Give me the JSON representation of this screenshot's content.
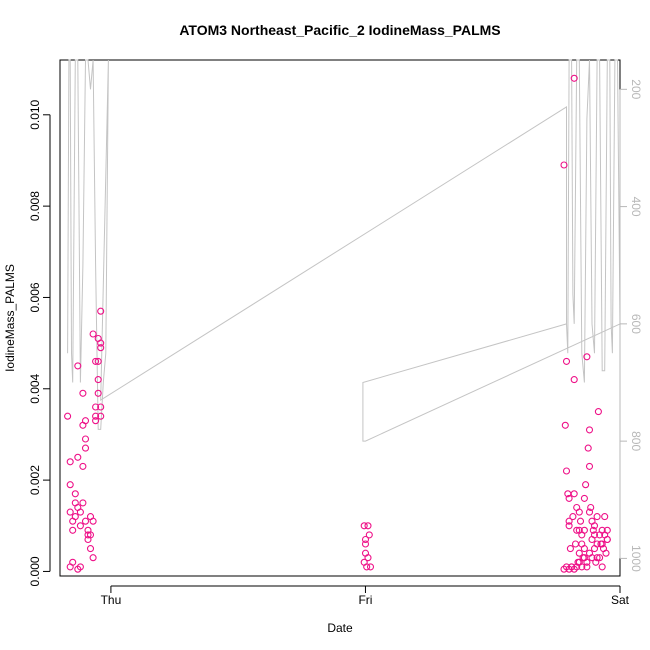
{
  "chart_data": {
    "type": "scatter",
    "title": "ATOM3 Northeast_Pacific_2 IodineMass_PALMS",
    "xlabel": "Date",
    "ylabel": "IodineMass_PALMS",
    "x_ticks": [
      "Thu",
      "Fri",
      "Sat"
    ],
    "y_ticks": [
      "0.000",
      "0.002",
      "0.004",
      "0.006",
      "0.008",
      "0.010"
    ],
    "y_tick_values": [
      0,
      0.002,
      0.004,
      0.006,
      0.008,
      0.01
    ],
    "ylim": [
      -0.0001,
      0.0112
    ],
    "xlim": [
      -0.2,
      2.0
    ],
    "right_axis_ticks": [
      "200",
      "400",
      "600",
      "800",
      "1000"
    ],
    "right_axis_values": [
      200,
      400,
      600,
      800,
      1000
    ],
    "right_axis_range": [
      1030,
      150
    ],
    "colors": {
      "points": "#ee1188",
      "altitude_line": "#c4c4c4",
      "right_axis": "#b8b8b8"
    },
    "series": [
      {
        "values": [
          [
            -0.17,
            0.0034
          ],
          [
            -0.16,
            0.0024
          ],
          [
            -0.16,
            0.0019
          ],
          [
            -0.16,
            0.0013
          ],
          [
            -0.15,
            0.0009
          ],
          [
            -0.15,
            0.0011
          ],
          [
            -0.15,
            0.0002
          ],
          [
            -0.14,
            0.0012
          ],
          [
            -0.14,
            0.0015
          ],
          [
            -0.14,
            0.0017
          ],
          [
            -0.13,
            0.0014
          ],
          [
            -0.13,
            0.0025
          ],
          [
            -0.13,
            0.0045
          ],
          [
            -0.12,
            0.001
          ],
          [
            -0.12,
            0.0001
          ],
          [
            -0.12,
            0.0013
          ],
          [
            -0.11,
            0.0015
          ],
          [
            -0.11,
            0.0039
          ],
          [
            -0.11,
            0.0032
          ],
          [
            -0.11,
            0.0023
          ],
          [
            -0.1,
            0.0033
          ],
          [
            -0.1,
            0.0029
          ],
          [
            -0.1,
            0.0011
          ],
          [
            -0.1,
            0.0027
          ],
          [
            -0.09,
            0.0009
          ],
          [
            -0.09,
            0.0007
          ],
          [
            -0.09,
            0.0008
          ],
          [
            -0.08,
            0.0005
          ],
          [
            -0.08,
            0.0012
          ],
          [
            -0.08,
            0.0008
          ],
          [
            -0.07,
            0.0003
          ],
          [
            -0.07,
            0.0011
          ],
          [
            -0.07,
            0.0052
          ],
          [
            -0.06,
            0.0036
          ],
          [
            -0.06,
            0.0034
          ],
          [
            -0.06,
            0.0046
          ],
          [
            -0.06,
            0.0033
          ],
          [
            -0.05,
            0.0051
          ],
          [
            -0.05,
            0.0046
          ],
          [
            -0.05,
            0.0039
          ],
          [
            -0.05,
            0.0042
          ],
          [
            -0.04,
            0.005
          ],
          [
            -0.04,
            0.0034
          ],
          [
            -0.04,
            0.0057
          ],
          [
            -0.04,
            0.0049
          ],
          [
            -0.04,
            0.0036
          ],
          [
            -0.13,
            5e-05
          ],
          [
            -0.16,
            0.0001
          ],
          [
            0.995,
            0.001
          ],
          [
            1.0,
            0.0007
          ],
          [
            1.0,
            0.0004
          ],
          [
            1.005,
            0.0001
          ],
          [
            1.01,
            0.001
          ],
          [
            1.01,
            0.0003
          ],
          [
            1.015,
            0.0008
          ],
          [
            1.02,
            0.0001
          ],
          [
            0.995,
            0.0002
          ],
          [
            1.0,
            0.0006
          ],
          [
            1.78,
            0.0089
          ],
          [
            1.785,
            0.0032
          ],
          [
            1.79,
            0.0046
          ],
          [
            1.79,
            0.0022
          ],
          [
            1.795,
            0.0017
          ],
          [
            1.8,
            0.0016
          ],
          [
            1.8,
            0.001
          ],
          [
            1.805,
            0.0005
          ],
          [
            1.81,
            0.0001
          ],
          [
            1.815,
            0.0012
          ],
          [
            1.82,
            0.0042
          ],
          [
            1.82,
            0.0108
          ],
          [
            1.825,
            0.0006
          ],
          [
            1.83,
            0.0009
          ],
          [
            1.835,
            0.0002
          ],
          [
            1.84,
            0.0013
          ],
          [
            1.84,
            0.0004
          ],
          [
            1.845,
            0.0011
          ],
          [
            1.85,
            0.0006
          ],
          [
            1.855,
            0.0003
          ],
          [
            1.86,
            0.0016
          ],
          [
            1.86,
            0.0009
          ],
          [
            1.865,
            0.0019
          ],
          [
            1.87,
            0.0047
          ],
          [
            1.875,
            0.0027
          ],
          [
            1.88,
            0.0031
          ],
          [
            1.88,
            0.0023
          ],
          [
            1.885,
            0.0014
          ],
          [
            1.89,
            0.0011
          ],
          [
            1.89,
            0.0007
          ],
          [
            1.895,
            0.0009
          ],
          [
            1.9,
            0.0005
          ],
          [
            1.905,
            0.0002
          ],
          [
            1.91,
            0.0003
          ],
          [
            1.915,
            0.0035
          ],
          [
            1.92,
            0.0008
          ],
          [
            1.925,
            0.0006
          ],
          [
            1.93,
            0.0001
          ],
          [
            1.935,
            0.0005
          ],
          [
            1.94,
            0.0012
          ],
          [
            1.945,
            0.0004
          ],
          [
            1.95,
            0.0007
          ],
          [
            1.78,
            5e-05
          ],
          [
            1.79,
            0.0001
          ],
          [
            1.8,
            5e-05
          ],
          [
            1.81,
            0.0001
          ],
          [
            1.82,
            5e-05
          ],
          [
            1.83,
            0.0001
          ],
          [
            1.84,
            0.0002
          ],
          [
            1.85,
            0.0001
          ],
          [
            1.86,
            0.0003
          ],
          [
            1.87,
            0.0001
          ],
          [
            1.88,
            0.0004
          ],
          [
            1.89,
            0.0003
          ],
          [
            1.9,
            0.0008
          ],
          [
            1.91,
            0.0006
          ],
          [
            1.92,
            0.0003
          ],
          [
            1.93,
            0.0006
          ],
          [
            1.94,
            0.0008
          ],
          [
            1.95,
            0.0009
          ],
          [
            1.8,
            0.0011
          ],
          [
            1.82,
            0.0017
          ],
          [
            1.84,
            0.0009
          ],
          [
            1.86,
            0.0005
          ],
          [
            1.88,
            0.0013
          ],
          [
            1.9,
            0.001
          ],
          [
            1.91,
            0.0012
          ],
          [
            1.93,
            0.0009
          ],
          [
            1.95,
            0.0007
          ],
          [
            1.87,
            0.0002
          ],
          [
            1.83,
            0.0014
          ],
          [
            1.85,
            0.0008
          ]
        ]
      }
    ],
    "altitude_line": [
      [
        -0.17,
        650
      ],
      [
        -0.165,
        150
      ],
      [
        -0.16,
        150
      ],
      [
        -0.155,
        650
      ],
      [
        -0.15,
        700
      ],
      [
        -0.14,
        150
      ],
      [
        -0.13,
        150
      ],
      [
        -0.12,
        700
      ],
      [
        -0.11,
        500
      ],
      [
        -0.1,
        150
      ],
      [
        -0.09,
        150
      ],
      [
        -0.08,
        200
      ],
      [
        -0.07,
        150
      ],
      [
        -0.06,
        500
      ],
      [
        -0.05,
        780
      ],
      [
        -0.04,
        780
      ],
      [
        -0.03,
        700
      ],
      [
        -0.02,
        650
      ],
      [
        -0.01,
        150
      ],
      [
        -0.04,
        730
      ],
      [
        1.79,
        230
      ],
      [
        1.79,
        600
      ],
      [
        1.795,
        650
      ],
      [
        1.8,
        150
      ],
      [
        1.81,
        150
      ],
      [
        1.815,
        550
      ],
      [
        1.82,
        600
      ],
      [
        1.83,
        150
      ],
      [
        1.84,
        150
      ],
      [
        1.85,
        650
      ],
      [
        1.86,
        700
      ],
      [
        1.87,
        250
      ],
      [
        1.88,
        150
      ],
      [
        1.89,
        600
      ],
      [
        1.9,
        650
      ],
      [
        1.91,
        150
      ],
      [
        1.92,
        150
      ],
      [
        1.93,
        680
      ],
      [
        1.94,
        680
      ],
      [
        1.95,
        150
      ],
      [
        1.96,
        150
      ],
      [
        1.965,
        600
      ],
      [
        1.97,
        650
      ],
      [
        1.98,
        150
      ],
      [
        1.99,
        150
      ],
      [
        2.0,
        600
      ],
      [
        1.0,
        800
      ],
      [
        0.99,
        800
      ],
      [
        0.99,
        700
      ],
      [
        1.79,
        600
      ]
    ]
  }
}
